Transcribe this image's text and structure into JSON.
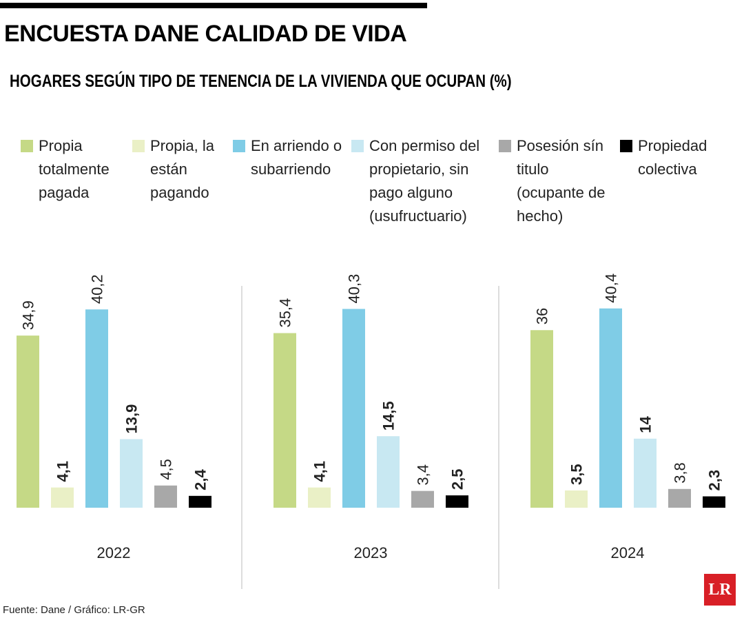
{
  "chart_data": {
    "type": "bar",
    "title": "ENCUESTA DANE CALIDAD DE VIDA",
    "subtitle": "HOGARES SEGÚN TIPO DE TENENCIA DE LA VIVIENDA QUE OCUPAN (%)",
    "categories": [
      "2022",
      "2023",
      "2024"
    ],
    "series": [
      {
        "name": "Propia totalmente pagada",
        "color": "#c5d986",
        "values": [
          34.9,
          35.4,
          36
        ],
        "value_labels": [
          "34,9",
          "35,4",
          "36"
        ]
      },
      {
        "name": "Propia, la están pagando",
        "color": "#eaf0c6",
        "values": [
          4.1,
          4.1,
          3.5
        ],
        "value_labels": [
          "4,1",
          "4,1",
          "3,5"
        ]
      },
      {
        "name": "En arriendo o subarriendo",
        "color": "#7fcce6",
        "values": [
          40.2,
          40.3,
          40.4
        ],
        "value_labels": [
          "40,2",
          "40,3",
          "40,4"
        ]
      },
      {
        "name": "Con permiso del propietario, sin pago alguno (usufructuario)",
        "color": "#c8e8f2",
        "values": [
          13.9,
          14.5,
          14
        ],
        "value_labels": [
          "13,9",
          "14,5",
          "14"
        ]
      },
      {
        "name": "Posesión sín titulo (ocupante de hecho)",
        "color": "#a8a8a8",
        "values": [
          4.5,
          3.4,
          3.8
        ],
        "value_labels": [
          "4,5",
          "3,4",
          "3,8"
        ]
      },
      {
        "name": "Propiedad colectiva",
        "color": "#000000",
        "values": [
          2.4,
          2.5,
          2.3
        ],
        "value_labels": [
          "2,4",
          "2,5",
          "2,3"
        ]
      }
    ],
    "source": "Fuente: Dane / Gráfico: LR-GR",
    "logo": "LR"
  }
}
